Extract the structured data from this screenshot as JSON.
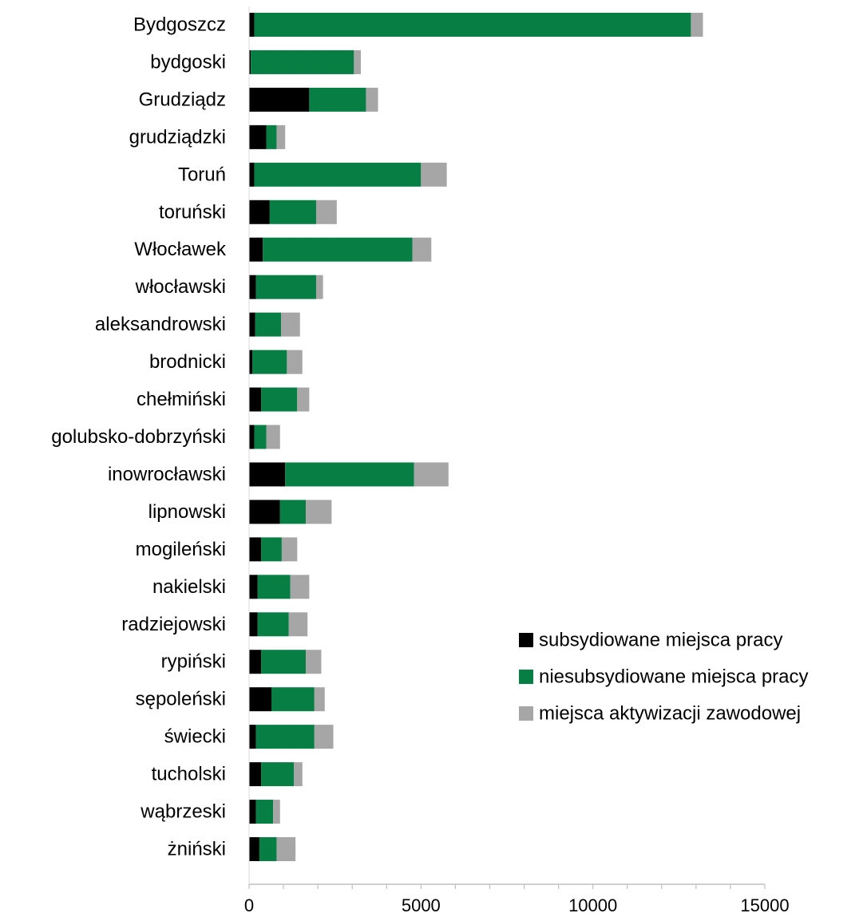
{
  "chart_data": {
    "type": "bar",
    "orientation": "horizontal",
    "stacked": true,
    "categories": [
      "Bydgoszcz",
      "bydgoski",
      "Grudziądz",
      "grudziądzki",
      "Toruń",
      "toruński",
      "Włocławek",
      "włocławski",
      "aleksandrowski",
      "brodnicki",
      "chełmiński",
      "golubsko-dobrzyński",
      "inowrocławski",
      "lipnowski",
      "mogileński",
      "nakielski",
      "radziejowski",
      "rypiński",
      "sępoleński",
      "świecki",
      "tucholski",
      "wąbrzeski",
      "żniński"
    ],
    "series": [
      {
        "name": "subsydiowane miejsca pracy",
        "color": "#000000",
        "values": [
          150,
          50,
          1750,
          500,
          150,
          600,
          400,
          200,
          180,
          100,
          350,
          150,
          1050,
          900,
          350,
          250,
          250,
          350,
          650,
          200,
          350,
          200,
          300
        ]
      },
      {
        "name": "niesubsydiowane miejsca pracy",
        "color": "#077E44",
        "values": [
          12700,
          3000,
          1650,
          300,
          4850,
          1350,
          4350,
          1750,
          750,
          1000,
          1050,
          350,
          3750,
          750,
          600,
          950,
          900,
          1300,
          1250,
          1700,
          950,
          500,
          500
        ]
      },
      {
        "name": "miejsca aktywizacji zawodowej",
        "color": "#A6A6A6",
        "values": [
          350,
          200,
          350,
          250,
          750,
          600,
          550,
          200,
          550,
          450,
          350,
          400,
          1000,
          750,
          450,
          550,
          550,
          450,
          300,
          550,
          250,
          200,
          550
        ]
      }
    ],
    "xlim": [
      0,
      15000
    ],
    "xticks": [
      "0",
      "5000",
      "10000",
      "15000"
    ],
    "xtick_values": [
      0,
      5000,
      10000,
      15000
    ],
    "minor_tick_step": 1000,
    "grid": false,
    "legend_position": "right"
  }
}
